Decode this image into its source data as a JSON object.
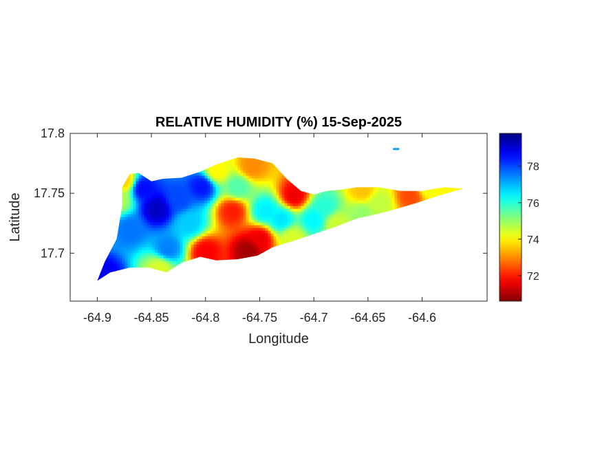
{
  "chart_data": {
    "type": "heatmap",
    "title": "RELATIVE HUMIDITY (%) 15-Sep-2025",
    "xlabel": "Longitude",
    "ylabel": "Latitude",
    "xlim": [
      -64.925,
      -64.54
    ],
    "ylim": [
      17.66,
      17.8
    ],
    "xticks": [
      -64.9,
      -64.85,
      -64.8,
      -64.75,
      -64.7,
      -64.65,
      -64.6
    ],
    "xtick_labels": [
      "-64.9",
      "-64.85",
      "-64.8",
      "-64.75",
      "-64.7",
      "-64.65",
      "-64.6"
    ],
    "yticks": [
      17.7,
      17.75,
      17.8
    ],
    "ytick_labels": [
      "17.7",
      "17.75",
      "17.8"
    ],
    "colormap": "jet",
    "clim": [
      70.6,
      79.8
    ],
    "colorbar_ticks": [
      72,
      74,
      76,
      78
    ],
    "colorbar_tick_labels": [
      "72",
      "74",
      "76",
      "78"
    ],
    "background_value": 75.3,
    "island_outline": [
      [
        -64.877,
        17.755
      ],
      [
        -64.87,
        17.766
      ],
      [
        -64.862,
        17.767
      ],
      [
        -64.85,
        17.76
      ],
      [
        -64.84,
        17.762
      ],
      [
        -64.822,
        17.763
      ],
      [
        -64.805,
        17.768
      ],
      [
        -64.79,
        17.774
      ],
      [
        -64.77,
        17.78
      ],
      [
        -64.755,
        17.779
      ],
      [
        -64.738,
        17.775
      ],
      [
        -64.725,
        17.762
      ],
      [
        -64.712,
        17.752
      ],
      [
        -64.7,
        17.749
      ],
      [
        -64.688,
        17.752
      ],
      [
        -64.675,
        17.753
      ],
      [
        -64.66,
        17.755
      ],
      [
        -64.64,
        17.755
      ],
      [
        -64.62,
        17.752
      ],
      [
        -64.6,
        17.752
      ],
      [
        -64.58,
        17.755
      ],
      [
        -64.562,
        17.754
      ],
      [
        -64.585,
        17.748
      ],
      [
        -64.605,
        17.742
      ],
      [
        -64.62,
        17.738
      ],
      [
        -64.64,
        17.733
      ],
      [
        -64.66,
        17.729
      ],
      [
        -64.68,
        17.722
      ],
      [
        -64.7,
        17.716
      ],
      [
        -64.72,
        17.71
      ],
      [
        -64.738,
        17.705
      ],
      [
        -64.752,
        17.698
      ],
      [
        -64.77,
        17.695
      ],
      [
        -64.79,
        17.694
      ],
      [
        -64.805,
        17.697
      ],
      [
        -64.822,
        17.692
      ],
      [
        -64.836,
        17.684
      ],
      [
        -64.852,
        17.688
      ],
      [
        -64.87,
        17.688
      ],
      [
        -64.888,
        17.684
      ],
      [
        -64.9,
        17.677
      ],
      [
        -64.893,
        17.693
      ],
      [
        -64.882,
        17.712
      ],
      [
        -64.877,
        17.74
      ]
    ],
    "islet": [
      [
        -64.626,
        17.787
      ],
      [
        -64.622,
        17.787
      ]
    ],
    "hotspots": [
      {
        "lon": -64.845,
        "lat": 17.737,
        "value": 79.2
      },
      {
        "lon": -64.858,
        "lat": 17.754,
        "value": 78.6
      },
      {
        "lon": -64.825,
        "lat": 17.745,
        "value": 78.0
      },
      {
        "lon": -64.803,
        "lat": 17.756,
        "value": 78.5
      },
      {
        "lon": -64.87,
        "lat": 17.72,
        "value": 77.6
      },
      {
        "lon": -64.893,
        "lat": 17.682,
        "value": 78.8
      },
      {
        "lon": -64.835,
        "lat": 17.703,
        "value": 77.5
      },
      {
        "lon": -64.815,
        "lat": 17.725,
        "value": 76.8
      },
      {
        "lon": -64.745,
        "lat": 17.735,
        "value": 76.5
      },
      {
        "lon": -64.73,
        "lat": 17.728,
        "value": 76.6
      },
      {
        "lon": -64.7,
        "lat": 17.728,
        "value": 76.4
      },
      {
        "lon": -64.69,
        "lat": 17.738,
        "value": 76.0
      },
      {
        "lon": -64.76,
        "lat": 17.702,
        "value": 70.9
      },
      {
        "lon": -64.75,
        "lat": 17.712,
        "value": 71.6
      },
      {
        "lon": -64.775,
        "lat": 17.735,
        "value": 72.0
      },
      {
        "lon": -64.8,
        "lat": 17.701,
        "value": 71.7
      },
      {
        "lon": -64.718,
        "lat": 17.748,
        "value": 71.6
      },
      {
        "lon": -64.61,
        "lat": 17.748,
        "value": 72.4
      },
      {
        "lon": -64.655,
        "lat": 17.752,
        "value": 73.5
      },
      {
        "lon": -64.58,
        "lat": 17.753,
        "value": 74.0
      },
      {
        "lon": -64.64,
        "lat": 17.742,
        "value": 74.6
      },
      {
        "lon": -64.757,
        "lat": 17.772,
        "value": 73.0
      },
      {
        "lon": -64.79,
        "lat": 17.768,
        "value": 74.0
      },
      {
        "lon": -64.842,
        "lat": 17.688,
        "value": 74.4
      },
      {
        "lon": -64.875,
        "lat": 17.76,
        "value": 73.6
      },
      {
        "lon": -64.88,
        "lat": 17.745,
        "value": 74.8
      },
      {
        "lon": -64.77,
        "lat": 17.755,
        "value": 75.6
      },
      {
        "lon": -64.68,
        "lat": 17.725,
        "value": 74.5
      },
      {
        "lon": -64.655,
        "lat": 17.733,
        "value": 75.0
      },
      {
        "lon": -64.72,
        "lat": 17.713,
        "value": 74.4
      },
      {
        "lon": -64.595,
        "lat": 17.755,
        "value": 74.2
      }
    ],
    "grid": false,
    "legend": "colorbar-right"
  }
}
